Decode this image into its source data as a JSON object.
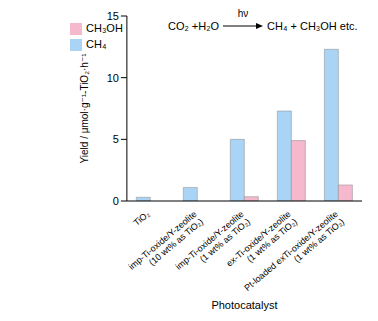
{
  "chart_data": {
    "type": "bar",
    "x_label": "Photocatalyst",
    "y_label": "Yield / μmol·g⁻¹-TiO₂·h⁻¹",
    "annotations": [
      "CO₂ +H₂O",
      "hν",
      "CH₄ + CH₃OH etc."
    ],
    "categories": [
      "TiO₂",
      "imp-Ti-oxide/Y-zeolite (10 wt% as TiO₂)",
      "imp-Ti-oxide/Y-zeolite (1 wt% as TiO₂)",
      "ex-Ti-oxide/Y-zeolite (1 wt% as TiO₂)",
      "Pt-loaded exTi-oxide/Y-zeolite (1 wt% as TiO₂)"
    ],
    "series": [
      {
        "name": "CH₄",
        "color": "#aad4f5",
        "values": [
          0.3,
          1.1,
          5.0,
          7.3,
          12.3
        ]
      },
      {
        "name": "CH₃OH",
        "color": "#f5b8cd",
        "values": [
          0,
          0,
          0.35,
          4.9,
          1.3
        ]
      }
    ],
    "ylim": [
      0,
      15
    ],
    "yticks": [
      0,
      5,
      10,
      15
    ],
    "grid": false,
    "legend": "upper left"
  }
}
